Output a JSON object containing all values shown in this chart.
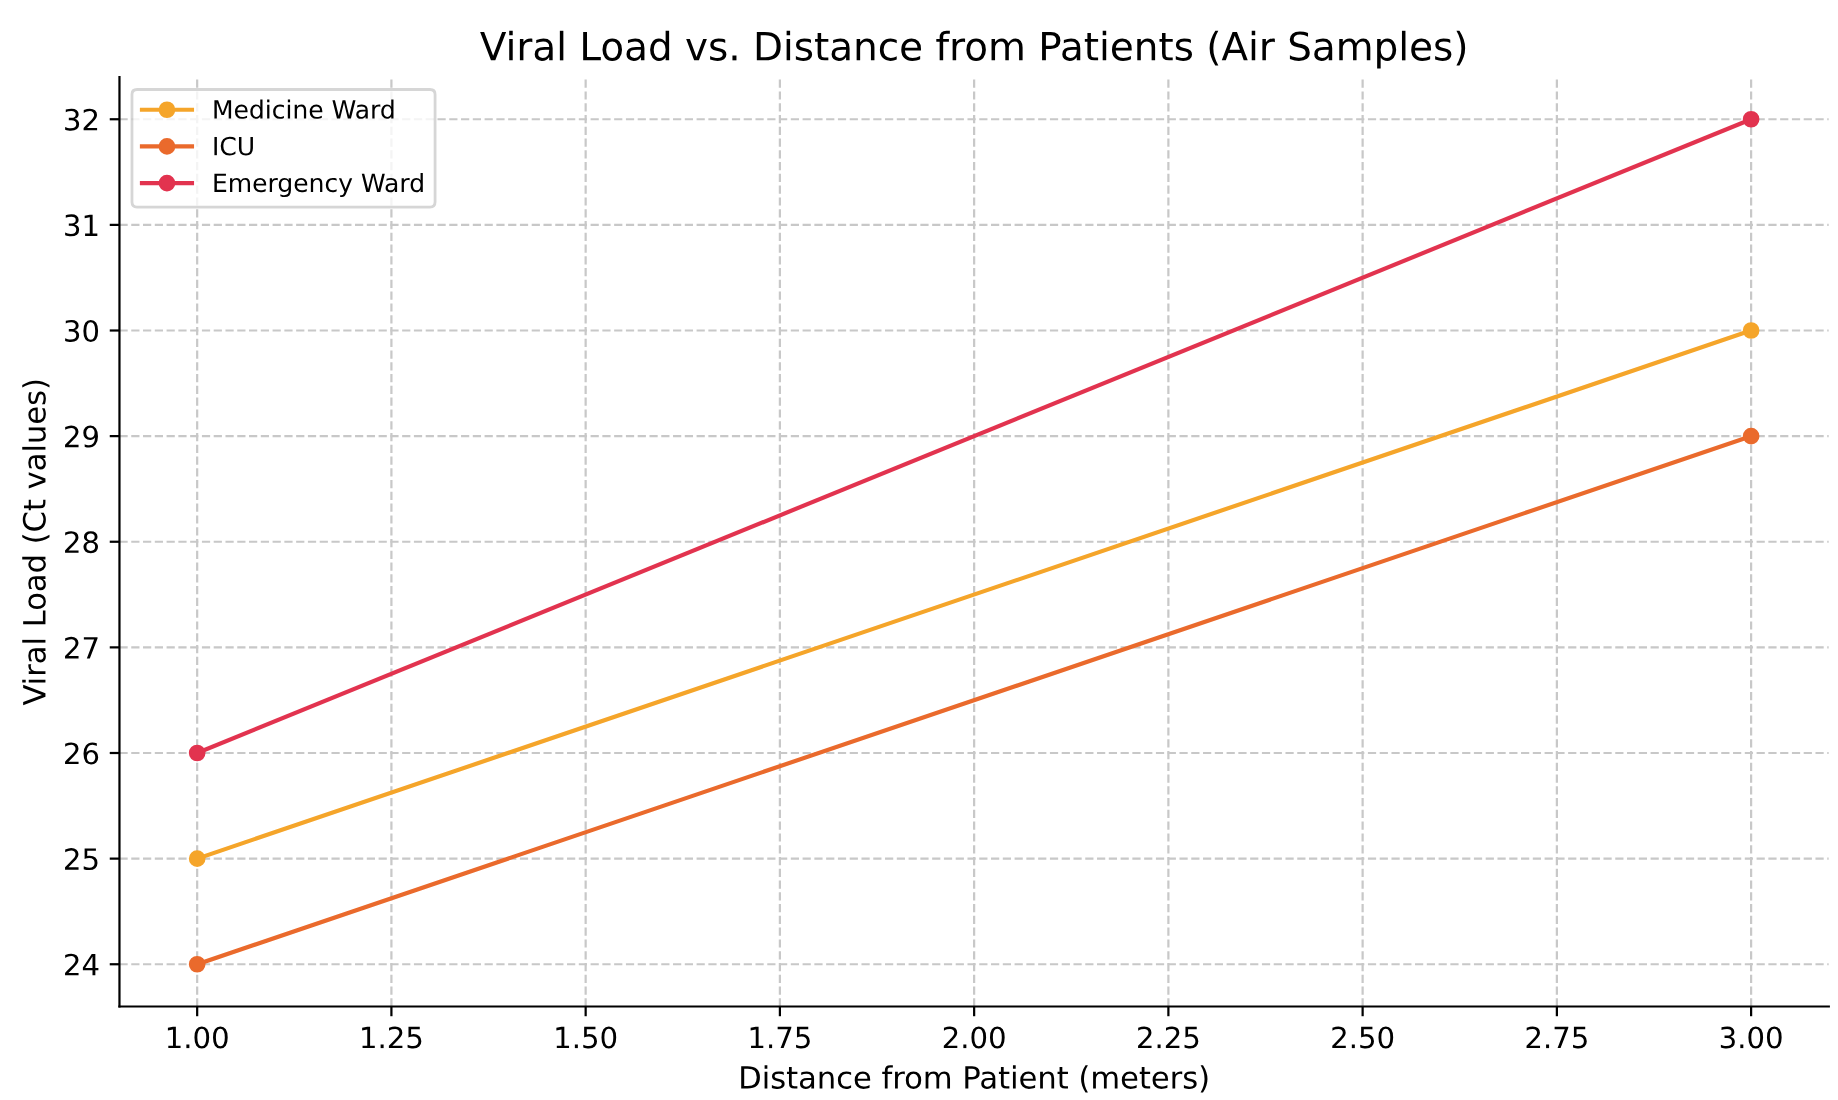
{
  "chart_data": {
    "type": "line",
    "title": "Viral Load vs. Distance from Patients (Air Samples)",
    "xlabel": "Distance from Patient (meters)",
    "ylabel": "Viral Load (Ct values)",
    "x": [
      1.0,
      3.0
    ],
    "series": [
      {
        "name": "Medicine Ward",
        "color": "#f5a52a",
        "values": [
          25,
          30
        ]
      },
      {
        "name": "ICU",
        "color": "#ea6a2c",
        "values": [
          24,
          29
        ]
      },
      {
        "name": "Emergency Ward",
        "color": "#e2334f",
        "values": [
          26,
          32
        ]
      }
    ],
    "xlim": [
      0.9,
      3.1
    ],
    "xticks": [
      {
        "value": 1.0,
        "label": "1.00"
      },
      {
        "value": 1.25,
        "label": "1.25"
      },
      {
        "value": 1.5,
        "label": "1.50"
      },
      {
        "value": 1.75,
        "label": "1.75"
      },
      {
        "value": 2.0,
        "label": "2.00"
      },
      {
        "value": 2.25,
        "label": "2.25"
      },
      {
        "value": 2.5,
        "label": "2.50"
      },
      {
        "value": 2.75,
        "label": "2.75"
      },
      {
        "value": 3.0,
        "label": "3.00"
      }
    ],
    "ylim": [
      23.6,
      32.4
    ],
    "yticks": [
      24,
      25,
      26,
      27,
      28,
      29,
      30,
      31,
      32
    ],
    "grid": true,
    "legend": "top left",
    "marker": "circle",
    "line_style": "solid"
  }
}
